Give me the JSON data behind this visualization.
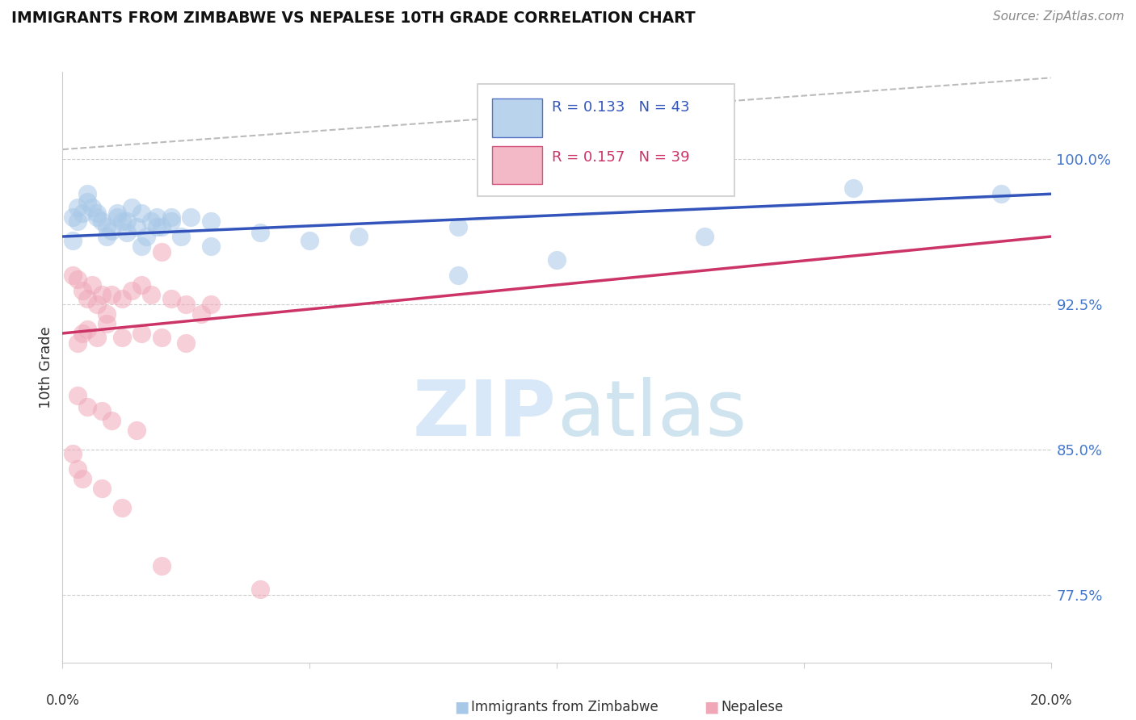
{
  "title": "IMMIGRANTS FROM ZIMBABWE VS NEPALESE 10TH GRADE CORRELATION CHART",
  "source": "Source: ZipAtlas.com",
  "ylabel": "10th Grade",
  "ytick_labels": [
    "77.5%",
    "85.0%",
    "92.5%",
    "100.0%"
  ],
  "ytick_values": [
    0.775,
    0.85,
    0.925,
    1.0
  ],
  "xlim": [
    0.0,
    0.2
  ],
  "ylim": [
    0.74,
    1.045
  ],
  "R_blue": "0.133",
  "N_blue": "43",
  "R_pink": "0.157",
  "N_pink": "39",
  "blue_color": "#A8C8E8",
  "pink_color": "#F0A8B8",
  "trend_blue": "#3355BB",
  "trend_pink": "#CC3366",
  "blue_line_y0": 0.96,
  "blue_line_y1": 0.982,
  "pink_line_y0": 0.91,
  "pink_line_y1": 0.96,
  "dash_line_y0": 1.005,
  "dash_line_y1": 1.042,
  "blue_scatter_x": [
    0.002,
    0.003,
    0.004,
    0.005,
    0.006,
    0.007,
    0.008,
    0.009,
    0.01,
    0.011,
    0.012,
    0.013,
    0.014,
    0.015,
    0.016,
    0.017,
    0.018,
    0.019,
    0.02,
    0.022,
    0.024,
    0.026,
    0.03,
    0.04,
    0.05,
    0.06,
    0.08,
    0.1,
    0.13,
    0.16,
    0.002,
    0.003,
    0.005,
    0.007,
    0.009,
    0.011,
    0.013,
    0.016,
    0.019,
    0.022,
    0.03,
    0.19,
    0.08
  ],
  "blue_scatter_y": [
    0.97,
    0.968,
    0.972,
    0.978,
    0.975,
    0.972,
    0.968,
    0.965,
    0.963,
    0.97,
    0.968,
    0.962,
    0.975,
    0.965,
    0.972,
    0.96,
    0.968,
    0.97,
    0.965,
    0.968,
    0.96,
    0.97,
    0.955,
    0.962,
    0.958,
    0.96,
    0.965,
    0.948,
    0.96,
    0.985,
    0.958,
    0.975,
    0.982,
    0.97,
    0.96,
    0.972,
    0.968,
    0.955,
    0.965,
    0.97,
    0.968,
    0.982,
    0.94
  ],
  "pink_scatter_x": [
    0.002,
    0.003,
    0.004,
    0.005,
    0.006,
    0.007,
    0.008,
    0.009,
    0.01,
    0.012,
    0.014,
    0.016,
    0.018,
    0.02,
    0.022,
    0.025,
    0.028,
    0.03,
    0.003,
    0.004,
    0.005,
    0.007,
    0.009,
    0.012,
    0.016,
    0.02,
    0.025,
    0.003,
    0.005,
    0.008,
    0.01,
    0.015,
    0.002,
    0.003,
    0.004,
    0.008,
    0.012,
    0.02,
    0.04
  ],
  "pink_scatter_y": [
    0.94,
    0.938,
    0.932,
    0.928,
    0.935,
    0.925,
    0.93,
    0.92,
    0.93,
    0.928,
    0.932,
    0.935,
    0.93,
    0.952,
    0.928,
    0.925,
    0.92,
    0.925,
    0.905,
    0.91,
    0.912,
    0.908,
    0.915,
    0.908,
    0.91,
    0.908,
    0.905,
    0.878,
    0.872,
    0.87,
    0.865,
    0.86,
    0.848,
    0.84,
    0.835,
    0.83,
    0.82,
    0.79,
    0.778
  ]
}
